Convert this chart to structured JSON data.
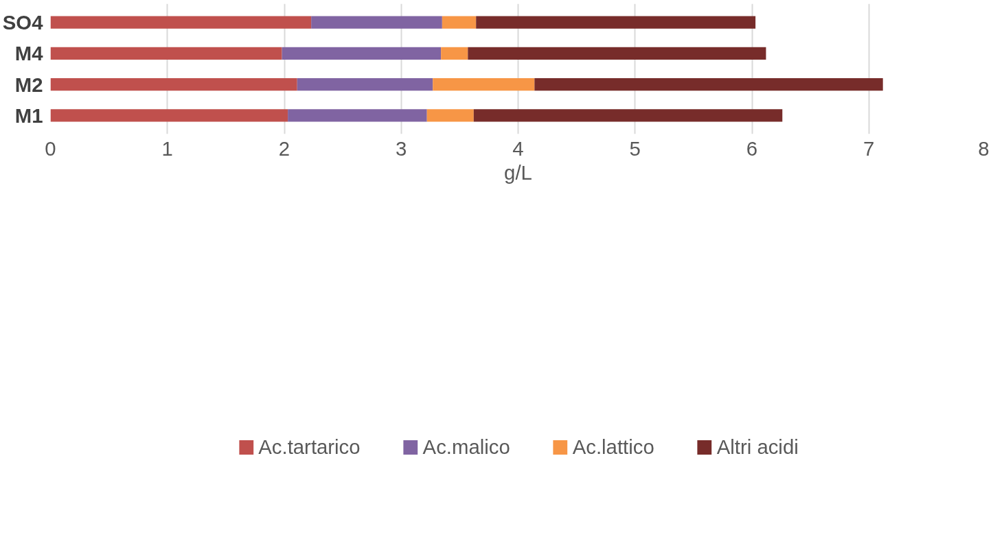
{
  "chart_data": {
    "type": "bar",
    "orientation": "horizontal",
    "stacked": true,
    "categories": [
      "SO4",
      "M4",
      "M2",
      "M1"
    ],
    "series": [
      {
        "name": "Ac.tartarico",
        "color": "#c0504d",
        "values": [
          2.23,
          1.98,
          2.11,
          2.03
        ]
      },
      {
        "name": "Ac.malico",
        "color": "#8064a2",
        "values": [
          1.12,
          1.36,
          1.16,
          1.19
        ]
      },
      {
        "name": "Ac.lattico",
        "color": "#f79646",
        "values": [
          0.29,
          0.23,
          0.87,
          0.4
        ]
      },
      {
        "name": "Altri acidi",
        "color": "#772c2a",
        "values": [
          2.39,
          2.55,
          2.98,
          2.64
        ]
      }
    ],
    "xlim": [
      0,
      8
    ],
    "xticks": [
      0,
      1,
      2,
      3,
      4,
      5,
      6,
      7,
      8
    ],
    "xlabel": "g/L",
    "grid": "x",
    "legend": "bottom"
  }
}
